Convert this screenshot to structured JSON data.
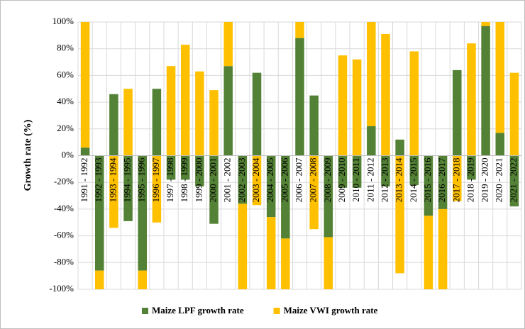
{
  "chart_data": {
    "type": "stacked_bar",
    "y_label": "Growth rate (%)",
    "categories": [
      "1991 - 1992",
      "1992 - 1993",
      "1993 - 1994",
      "1994 - 1995",
      "1995 - 1996",
      "1996 - 1997",
      "1997 - 1998",
      "1998 - 1999",
      "1999 - 2000",
      "2000 - 2001",
      "2001 - 2002",
      "2002 - 2003",
      "2003 - 2004",
      "2004 - 2005",
      "2005 - 2006",
      "2006 - 2007",
      "2007 - 2008",
      "2008 - 2009",
      "2009 - 2010",
      "2010 - 2011",
      "2011 - 2012",
      "2012 - 2013",
      "2013 - 2014",
      "2014 - 2015",
      "2015 - 2016",
      "2016 - 2017",
      "2017 - 2018",
      "2018 - 2019",
      "2019 - 2020",
      "2020 - 2021",
      "2021 - 2022"
    ],
    "series": [
      {
        "name": "Maize LPF growth rate",
        "color": "#538135",
        "values": [
          6,
          -86,
          46,
          -49,
          -86,
          50,
          -18,
          -18,
          -23,
          -51,
          67,
          -36,
          62,
          -46,
          -62,
          88,
          45,
          -61,
          -24,
          -24,
          22,
          -23,
          12,
          -22,
          -45,
          -40,
          64,
          -18,
          97,
          17,
          -38
        ]
      },
      {
        "name": "Maize VWI growth rate",
        "color": "#ffc000",
        "values": [
          94,
          -14,
          -54,
          50,
          -14,
          -50,
          67,
          83,
          63,
          49,
          33,
          -64,
          -37,
          -54,
          -38,
          12,
          -55,
          -39,
          75,
          72,
          78,
          91,
          -88,
          78,
          -55,
          -60,
          -34,
          84,
          3,
          83,
          62
        ]
      }
    ],
    "ylim": [
      -100,
      100
    ],
    "yticks": [
      {
        "value": -100,
        "label": "-100%"
      },
      {
        "value": -80,
        "label": "-80%"
      },
      {
        "value": -60,
        "label": "-60%"
      },
      {
        "value": -40,
        "label": "-40%"
      },
      {
        "value": -20,
        "label": "-20%"
      },
      {
        "value": 0,
        "label": "0%"
      },
      {
        "value": 20,
        "label": "20%"
      },
      {
        "value": 40,
        "label": "40%"
      },
      {
        "value": 60,
        "label": "60%"
      },
      {
        "value": 80,
        "label": "80%"
      },
      {
        "value": 100,
        "label": "100%"
      }
    ],
    "grid": true,
    "legend": "bottom"
  }
}
